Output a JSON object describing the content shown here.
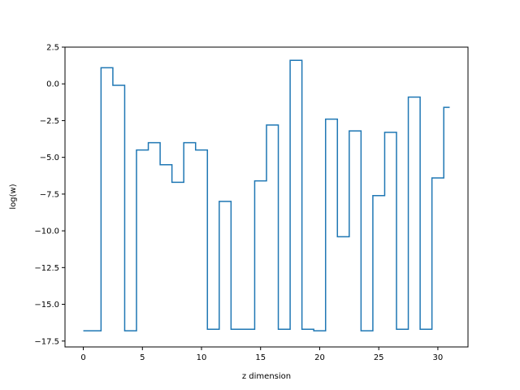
{
  "chart_data": {
    "type": "line",
    "drawstyle": "steps-mid",
    "title": "",
    "xlabel": "z dimension",
    "ylabel": "log(w)",
    "xlim": [
      -1.55,
      32.55
    ],
    "ylim": [
      -17.9,
      2.5
    ],
    "xticks": [
      0,
      5,
      10,
      15,
      20,
      25,
      30
    ],
    "yticks": [
      2.5,
      0.0,
      -2.5,
      -5.0,
      -7.5,
      -10.0,
      -12.5,
      -15.0,
      -17.5
    ],
    "ytick_labels": [
      "2.5",
      "0.0",
      "−2.5",
      "−5.0",
      "−7.5",
      "−10.0",
      "−12.5",
      "−15.0",
      "−17.5"
    ],
    "grid": false,
    "series": [
      {
        "color": "#1f77b4",
        "x": [
          0,
          1,
          2,
          3,
          4,
          5,
          6,
          7,
          8,
          9,
          10,
          11,
          12,
          13,
          14,
          15,
          16,
          17,
          18,
          19,
          20,
          21,
          22,
          23,
          24,
          25,
          26,
          27,
          28,
          29,
          30,
          31
        ],
        "y": [
          -16.8,
          -16.8,
          1.1,
          -0.1,
          -16.8,
          -4.5,
          -4.0,
          -5.5,
          -6.7,
          -4.0,
          -4.5,
          -16.7,
          -8.0,
          -16.7,
          -16.7,
          -6.6,
          -2.8,
          -16.7,
          1.6,
          -16.7,
          -16.8,
          -2.4,
          -10.4,
          -3.2,
          -16.8,
          -7.6,
          -3.3,
          -16.7,
          -0.9,
          -16.7,
          -6.4,
          -1.6
        ]
      }
    ]
  }
}
